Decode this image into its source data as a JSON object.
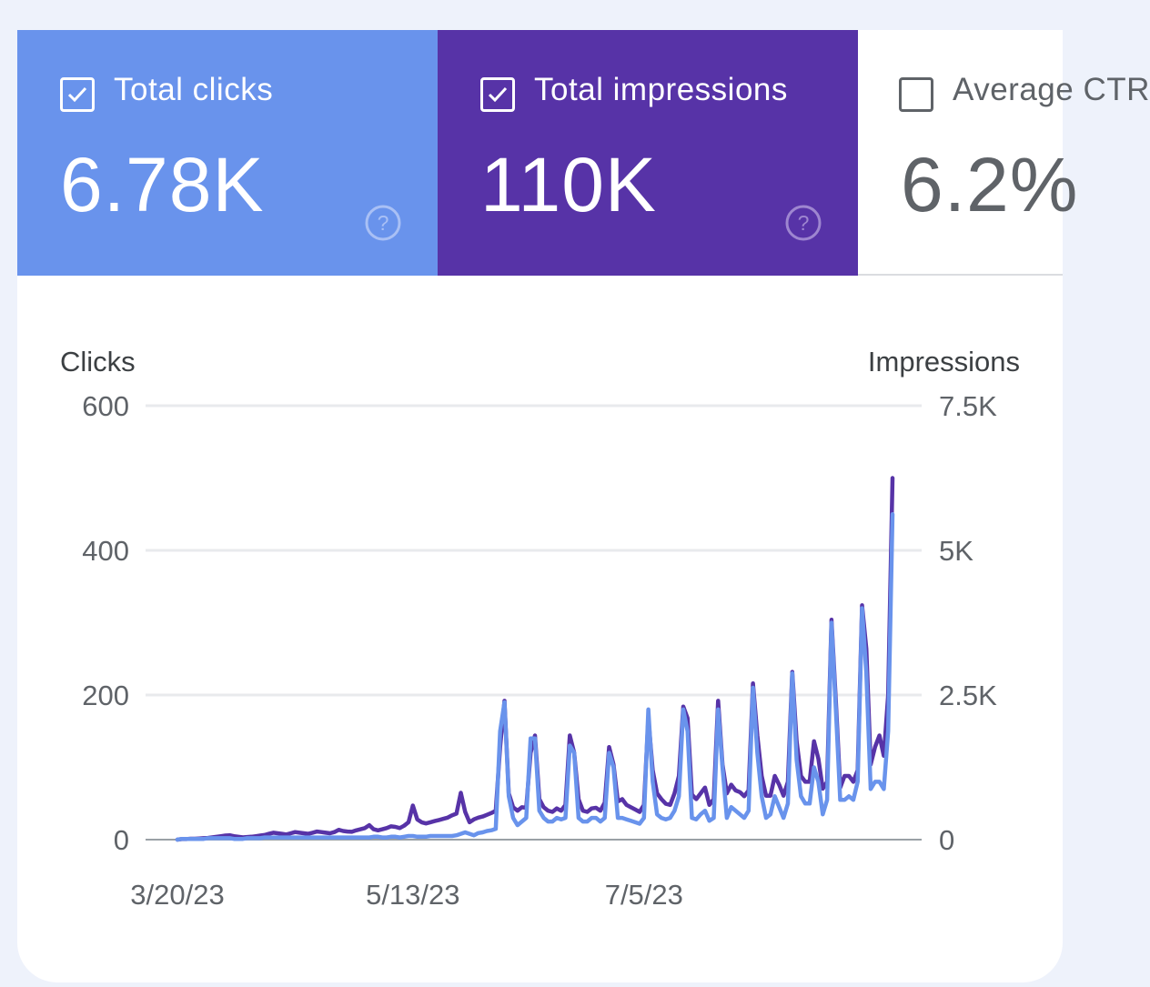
{
  "metrics": {
    "clicks": {
      "label": "Total clicks",
      "value": "6.78K",
      "checked": true,
      "color": "#6993ec",
      "help_icon": "question-circle-icon"
    },
    "impressions": {
      "label": "Total impressions",
      "value": "110K",
      "checked": true,
      "color": "#5733a7",
      "help_icon": "question-circle-icon"
    },
    "ctr": {
      "label": "Average CTR",
      "value": "6.2%",
      "checked": false
    }
  },
  "chart_data": {
    "type": "line",
    "left_axis": {
      "label": "Clicks",
      "ticks": [
        "0",
        "200",
        "400",
        "600"
      ],
      "ylim": [
        0,
        600
      ]
    },
    "right_axis": {
      "label": "Impressions",
      "ticks": [
        "0",
        "2.5K",
        "5K",
        "7.5K"
      ],
      "ylim": [
        0,
        7500
      ]
    },
    "x_ticks": [
      {
        "label": "3/20/23",
        "index": 0
      },
      {
        "label": "5/13/23",
        "index": 54
      },
      {
        "label": "7/5/23",
        "index": 107
      }
    ],
    "x_range": [
      "3/20/23",
      "8/22/23"
    ],
    "grid": true,
    "series": [
      {
        "name": "Impressions",
        "axis": "right",
        "color": "#5733a7",
        "values": [
          0,
          10,
          10,
          15,
          15,
          20,
          25,
          30,
          40,
          50,
          60,
          70,
          75,
          60,
          50,
          40,
          45,
          50,
          60,
          70,
          80,
          100,
          120,
          110,
          100,
          90,
          110,
          130,
          120,
          110,
          100,
          120,
          140,
          130,
          120,
          110,
          130,
          170,
          150,
          140,
          135,
          160,
          180,
          200,
          250,
          180,
          160,
          180,
          200,
          230,
          220,
          200,
          240,
          300,
          590,
          350,
          300,
          280,
          300,
          320,
          340,
          360,
          380,
          420,
          450,
          810,
          480,
          300,
          350,
          380,
          400,
          430,
          460,
          500,
          1600,
          2400,
          800,
          560,
          500,
          560,
          550,
          1500,
          1800,
          700,
          560,
          500,
          480,
          540,
          500,
          600,
          1800,
          1500,
          700,
          500,
          480,
          540,
          550,
          500,
          640,
          1600,
          1300,
          660,
          700,
          600,
          560,
          520,
          480,
          600,
          2100,
          1200,
          800,
          700,
          620,
          600,
          800,
          1100,
          2300,
          2100,
          780,
          700,
          800,
          900,
          600,
          700,
          2400,
          1300,
          800,
          950,
          850,
          820,
          750,
          850,
          2700,
          1800,
          1100,
          760,
          760,
          1100,
          950,
          760,
          1000,
          2900,
          1700,
          1100,
          1000,
          1000,
          1700,
          1400,
          880,
          1000,
          3800,
          2400,
          900,
          1100,
          1100,
          1000,
          1200,
          4050,
          3300,
          1300,
          1600,
          1800,
          1450,
          2500,
          6250
        ]
      },
      {
        "name": "Clicks",
        "axis": "left",
        "color": "#6993ec",
        "values": [
          0,
          1,
          1,
          1,
          1,
          1,
          1,
          2,
          2,
          2,
          2,
          2,
          2,
          1,
          1,
          1,
          2,
          2,
          2,
          2,
          3,
          3,
          3,
          3,
          3,
          3,
          3,
          3,
          3,
          3,
          3,
          3,
          3,
          3,
          3,
          3,
          3,
          3,
          3,
          3,
          3,
          3,
          3,
          3,
          3,
          4,
          4,
          3,
          3,
          4,
          4,
          3,
          4,
          5,
          5,
          4,
          4,
          4,
          5,
          5,
          5,
          5,
          5,
          5,
          6,
          8,
          10,
          8,
          6,
          9,
          10,
          12,
          13,
          15,
          150,
          190,
          60,
          30,
          20,
          25,
          30,
          140,
          140,
          40,
          30,
          25,
          25,
          30,
          28,
          30,
          130,
          120,
          30,
          25,
          25,
          30,
          30,
          25,
          30,
          120,
          100,
          30,
          30,
          28,
          26,
          24,
          22,
          30,
          180,
          80,
          35,
          30,
          28,
          30,
          40,
          60,
          180,
          150,
          30,
          28,
          35,
          40,
          26,
          30,
          180,
          100,
          30,
          45,
          40,
          35,
          30,
          40,
          210,
          120,
          60,
          30,
          35,
          60,
          45,
          30,
          50,
          230,
          110,
          60,
          50,
          50,
          100,
          80,
          35,
          55,
          300,
          180,
          55,
          55,
          60,
          55,
          80,
          320,
          230,
          70,
          80,
          80,
          70,
          150,
          450
        ]
      }
    ]
  }
}
